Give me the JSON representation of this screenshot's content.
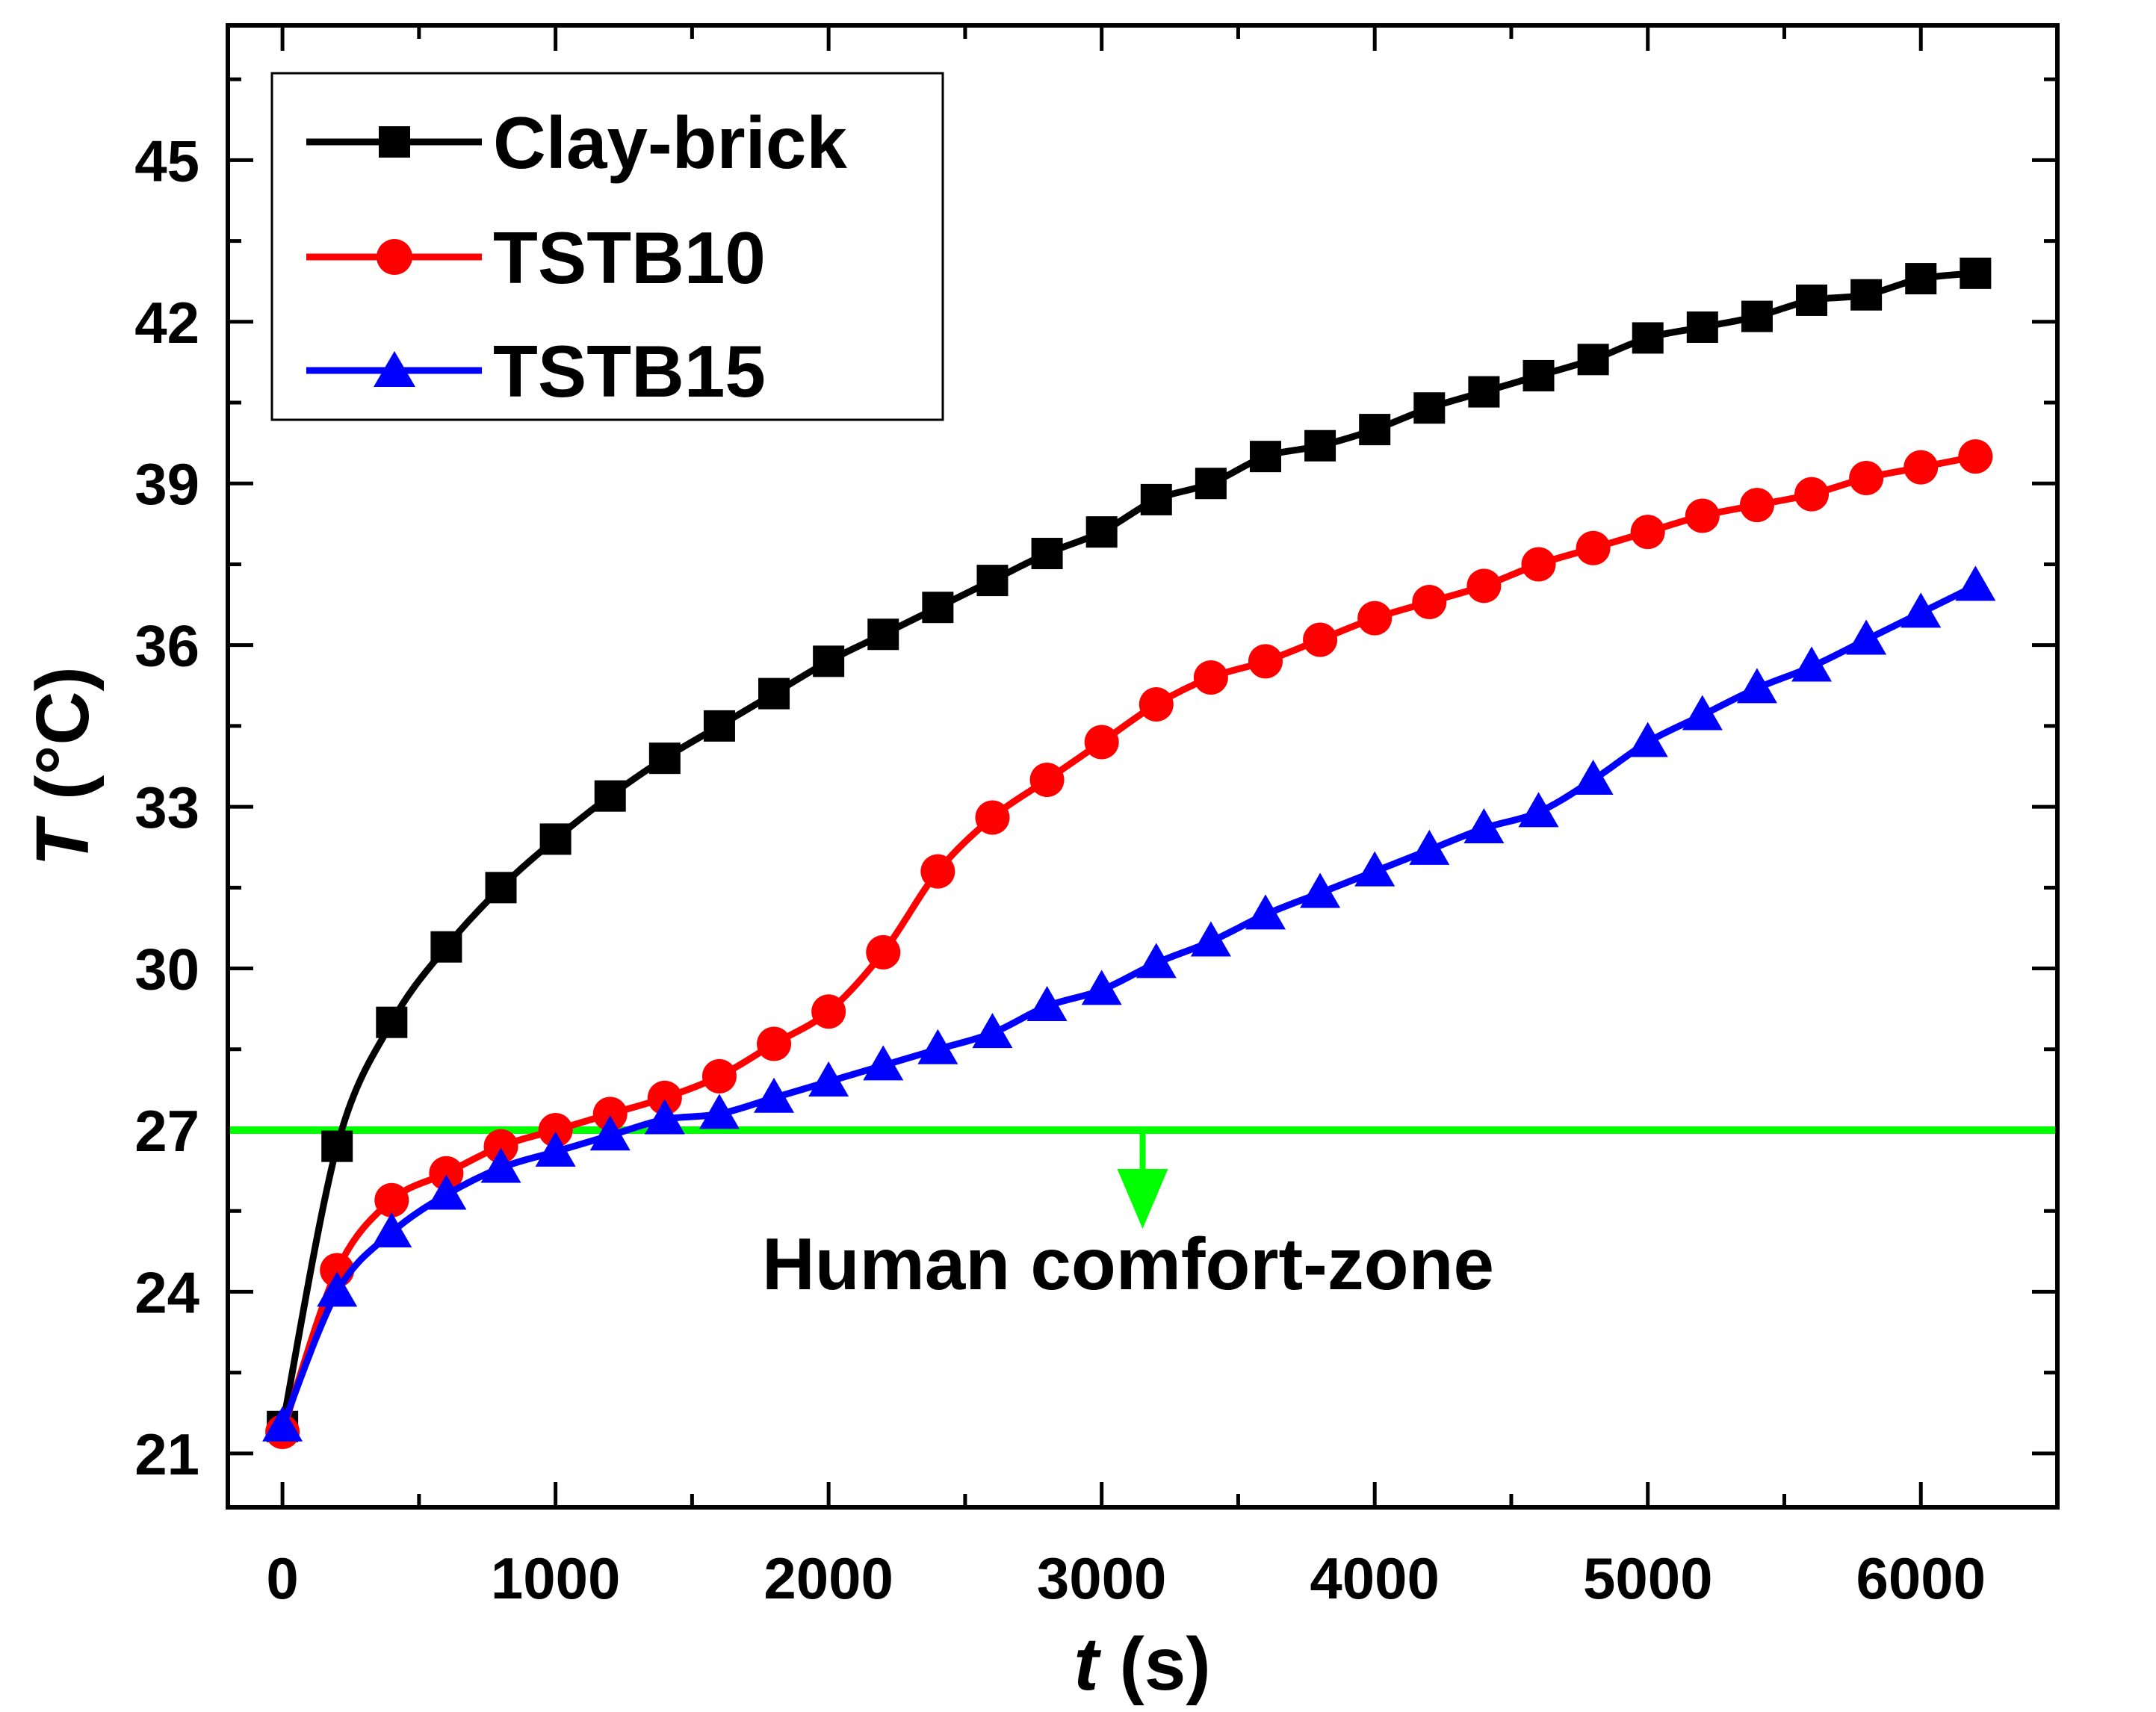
{
  "chart_data": {
    "type": "line",
    "title": "",
    "xlabel": {
      "var": "t",
      "unit": " (s)"
    },
    "ylabel": {
      "var": "T",
      "unit": " (°C)"
    },
    "xlim": [
      -200,
      6500
    ],
    "ylim": [
      20,
      47.5
    ],
    "xticks": [
      0,
      1000,
      2000,
      3000,
      4000,
      5000,
      6000
    ],
    "yticks": [
      21,
      24,
      27,
      30,
      33,
      36,
      39,
      42,
      45
    ],
    "grid": false,
    "legend_position": "top-left",
    "x": [
      0,
      200,
      400,
      600,
      800,
      1000,
      1200,
      1400,
      1600,
      1800,
      2000,
      2200,
      2400,
      2600,
      2800,
      3000,
      3200,
      3400,
      3600,
      3800,
      4000,
      4200,
      4400,
      4600,
      4800,
      5000,
      5200,
      5400,
      5600,
      5800,
      6000,
      6200
    ],
    "series": [
      {
        "name": "Clay-brick",
        "color": "#000000",
        "marker": "square",
        "values": [
          21.5,
          26.7,
          29.0,
          30.4,
          31.5,
          32.4,
          33.2,
          33.9,
          34.5,
          35.1,
          35.7,
          36.2,
          36.7,
          37.2,
          37.7,
          38.1,
          38.7,
          39.0,
          39.5,
          39.7,
          40.0,
          40.4,
          40.7,
          41.0,
          41.3,
          41.7,
          41.9,
          42.1,
          42.4,
          42.5,
          42.8,
          42.9
        ]
      },
      {
        "name": "TSTB10",
        "color": "#ff0000",
        "marker": "circle",
        "values": [
          21.4,
          24.4,
          25.7,
          26.2,
          26.7,
          27.0,
          27.3,
          27.6,
          28.0,
          28.6,
          29.2,
          30.3,
          31.8,
          32.8,
          33.5,
          34.2,
          34.9,
          35.4,
          35.7,
          36.1,
          36.5,
          36.8,
          37.1,
          37.5,
          37.8,
          38.1,
          38.4,
          38.6,
          38.8,
          39.1,
          39.3,
          39.5
        ]
      },
      {
        "name": "TSTB15",
        "color": "#0000ff",
        "marker": "triangle",
        "values": [
          21.5,
          24.0,
          25.1,
          25.8,
          26.3,
          26.6,
          26.9,
          27.2,
          27.3,
          27.6,
          27.9,
          28.2,
          28.5,
          28.8,
          29.3,
          29.6,
          30.1,
          30.5,
          31.0,
          31.4,
          31.8,
          32.2,
          32.6,
          32.9,
          33.5,
          34.2,
          34.7,
          35.2,
          35.6,
          36.1,
          36.6,
          37.1
        ]
      }
    ],
    "reference_line": {
      "y": 27,
      "color": "#00ff00"
    },
    "annotation": {
      "text": "Human comfort-zone",
      "arrow_x": 3150,
      "arrow_color": "#00ff00"
    }
  }
}
